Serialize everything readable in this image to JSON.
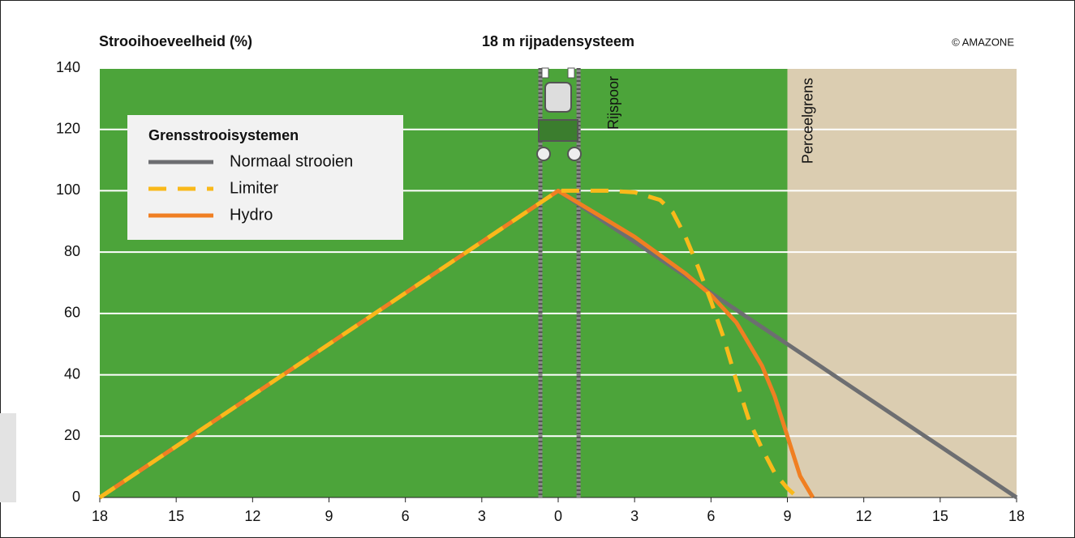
{
  "chart_data": {
    "type": "line",
    "title": "18 m rijpadensysteem",
    "y_label": "Strooihoeveelheid (%)",
    "credit": "© AMAZONE",
    "legend_title": "Grensstrooisystemen",
    "legend": "upper left",
    "grid": true,
    "xlim": [
      -18,
      18
    ],
    "ylim": [
      0,
      140
    ],
    "xticks": [
      {
        "value": -18,
        "label": "18"
      },
      {
        "value": -15,
        "label": "15"
      },
      {
        "value": -12,
        "label": "12"
      },
      {
        "value": -9,
        "label": "9"
      },
      {
        "value": -6,
        "label": "6"
      },
      {
        "value": -3,
        "label": "3"
      },
      0,
      3,
      6,
      9,
      12,
      15,
      18
    ],
    "yticks": [
      0,
      20,
      40,
      60,
      80,
      100,
      120,
      140
    ],
    "field_color": "#4ca43a",
    "outside_color": "#dbcdb1",
    "annotations": [
      {
        "text": "Rijspoor",
        "x": 0.8
      },
      {
        "text": "Perceelgrens",
        "x": 9
      }
    ],
    "tramlines": [
      -0.7,
      0.8
    ],
    "series": [
      {
        "name": "Normaal strooien",
        "color": "#6d6e71",
        "dash": false,
        "x": [
          -18,
          0,
          18
        ],
        "values": [
          0,
          100,
          0
        ]
      },
      {
        "name": "Hydro",
        "color": "#f07f22",
        "dash": false,
        "x": [
          -18,
          0,
          1,
          2,
          3,
          4,
          5,
          6,
          7,
          7.5,
          8,
          8.5,
          9,
          9.5,
          10
        ],
        "values": [
          0,
          100,
          95,
          90,
          85,
          79,
          73,
          66,
          57,
          50,
          43,
          33,
          20,
          7,
          0
        ]
      },
      {
        "name": "Limiter",
        "color": "#f9b91a",
        "dash": true,
        "x": [
          -18,
          0,
          1,
          2,
          3,
          4,
          4.5,
          5,
          5.5,
          6,
          6.5,
          7,
          7.5,
          8,
          8.5,
          9,
          9.4
        ],
        "values": [
          0,
          100,
          100,
          100,
          99.5,
          97,
          93,
          85,
          75,
          64,
          52,
          38,
          25,
          16,
          8,
          3,
          0
        ]
      }
    ]
  }
}
